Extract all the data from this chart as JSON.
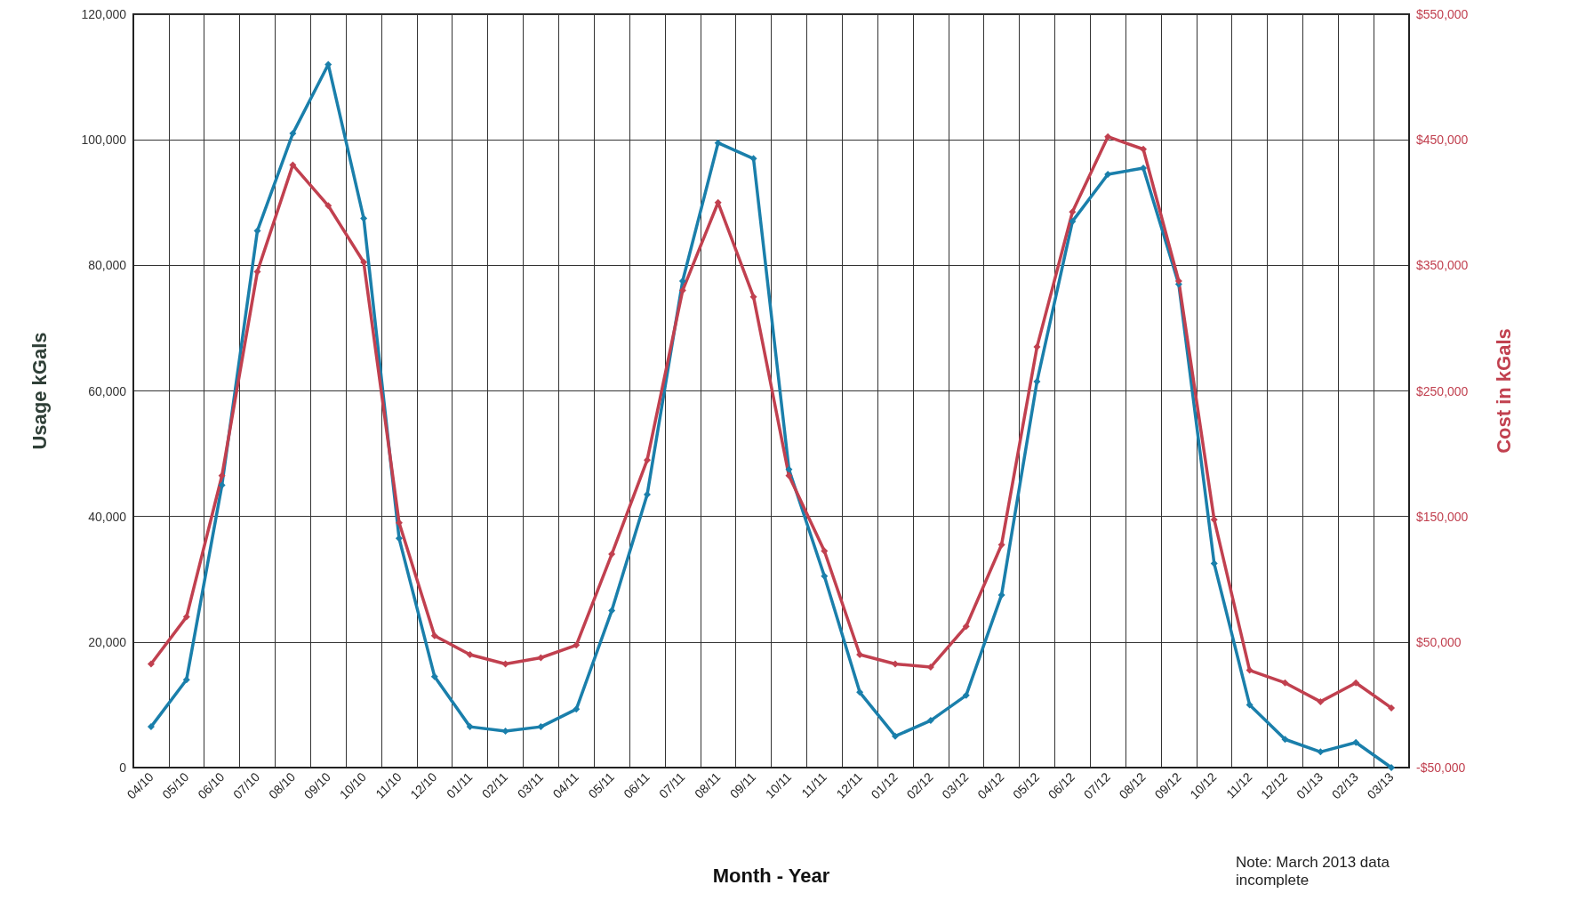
{
  "chart_data": {
    "type": "line",
    "xlabel": "Month - Year",
    "ylabel": "Usage kGals",
    "y2label": "Cost in kGals",
    "categories": [
      "04/10",
      "05/10",
      "06/10",
      "07/10",
      "08/10",
      "09/10",
      "10/10",
      "11/10",
      "12/10",
      "01/11",
      "02/11",
      "03/11",
      "04/11",
      "05/11",
      "06/11",
      "07/11",
      "08/11",
      "09/11",
      "10/11",
      "11/11",
      "12/11",
      "01/12",
      "02/12",
      "03/12",
      "04/12",
      "05/12",
      "06/12",
      "07/12",
      "08/12",
      "09/12",
      "10/12",
      "11/12",
      "12/12",
      "01/13",
      "02/13",
      "03/13"
    ],
    "series": [
      {
        "color": "#1a7fab",
        "values": [
          6500,
          14000,
          45000,
          85500,
          101000,
          112000,
          87500,
          36500,
          14500,
          6500,
          5800,
          6500,
          9300,
          25000,
          43500,
          77500,
          99500,
          97000,
          47500,
          30500,
          12000,
          5000,
          7500,
          11500,
          27500,
          61500,
          87000,
          94500,
          95500,
          77000,
          32500,
          10000,
          4500,
          2500,
          4000,
          0
        ]
      },
      {
        "color": "#c1404f",
        "axis": "y2",
        "values": [
          32500,
          70000,
          182500,
          345000,
          430000,
          397500,
          352500,
          145000,
          55000,
          40000,
          32500,
          37500,
          47500,
          120000,
          195000,
          330000,
          400000,
          325000,
          182500,
          122500,
          40000,
          32500,
          30000,
          62500,
          127500,
          285000,
          392500,
          452500,
          442500,
          337500,
          147500,
          27500,
          17500,
          2500,
          17500,
          -2500
        ]
      }
    ],
    "ylim": [
      0,
      120000
    ],
    "yticks": [
      {
        "value": 0,
        "label": "0"
      },
      {
        "value": 20000,
        "label": "20,000"
      },
      {
        "value": 40000,
        "label": "40,000"
      },
      {
        "value": 60000,
        "label": "60,000"
      },
      {
        "value": 80000,
        "label": "80,000"
      },
      {
        "value": 100000,
        "label": "100,000"
      },
      {
        "value": 120000,
        "label": "120,000"
      }
    ],
    "y2lim": [
      -50000,
      550000
    ],
    "y2ticks": [
      {
        "value": -50000,
        "label": "-$50,000"
      },
      {
        "value": 50000,
        "label": "$50,000"
      },
      {
        "value": 150000,
        "label": "$150,000"
      },
      {
        "value": 250000,
        "label": "$250,000"
      },
      {
        "value": 350000,
        "label": "$350,000"
      },
      {
        "value": 450000,
        "label": "$450,000"
      },
      {
        "value": 550000,
        "label": "$550,000"
      }
    ],
    "grid": true,
    "marker": "diamond",
    "line_style": "solid",
    "annotations": [
      "Note:  March 2013 data incomplete"
    ]
  }
}
